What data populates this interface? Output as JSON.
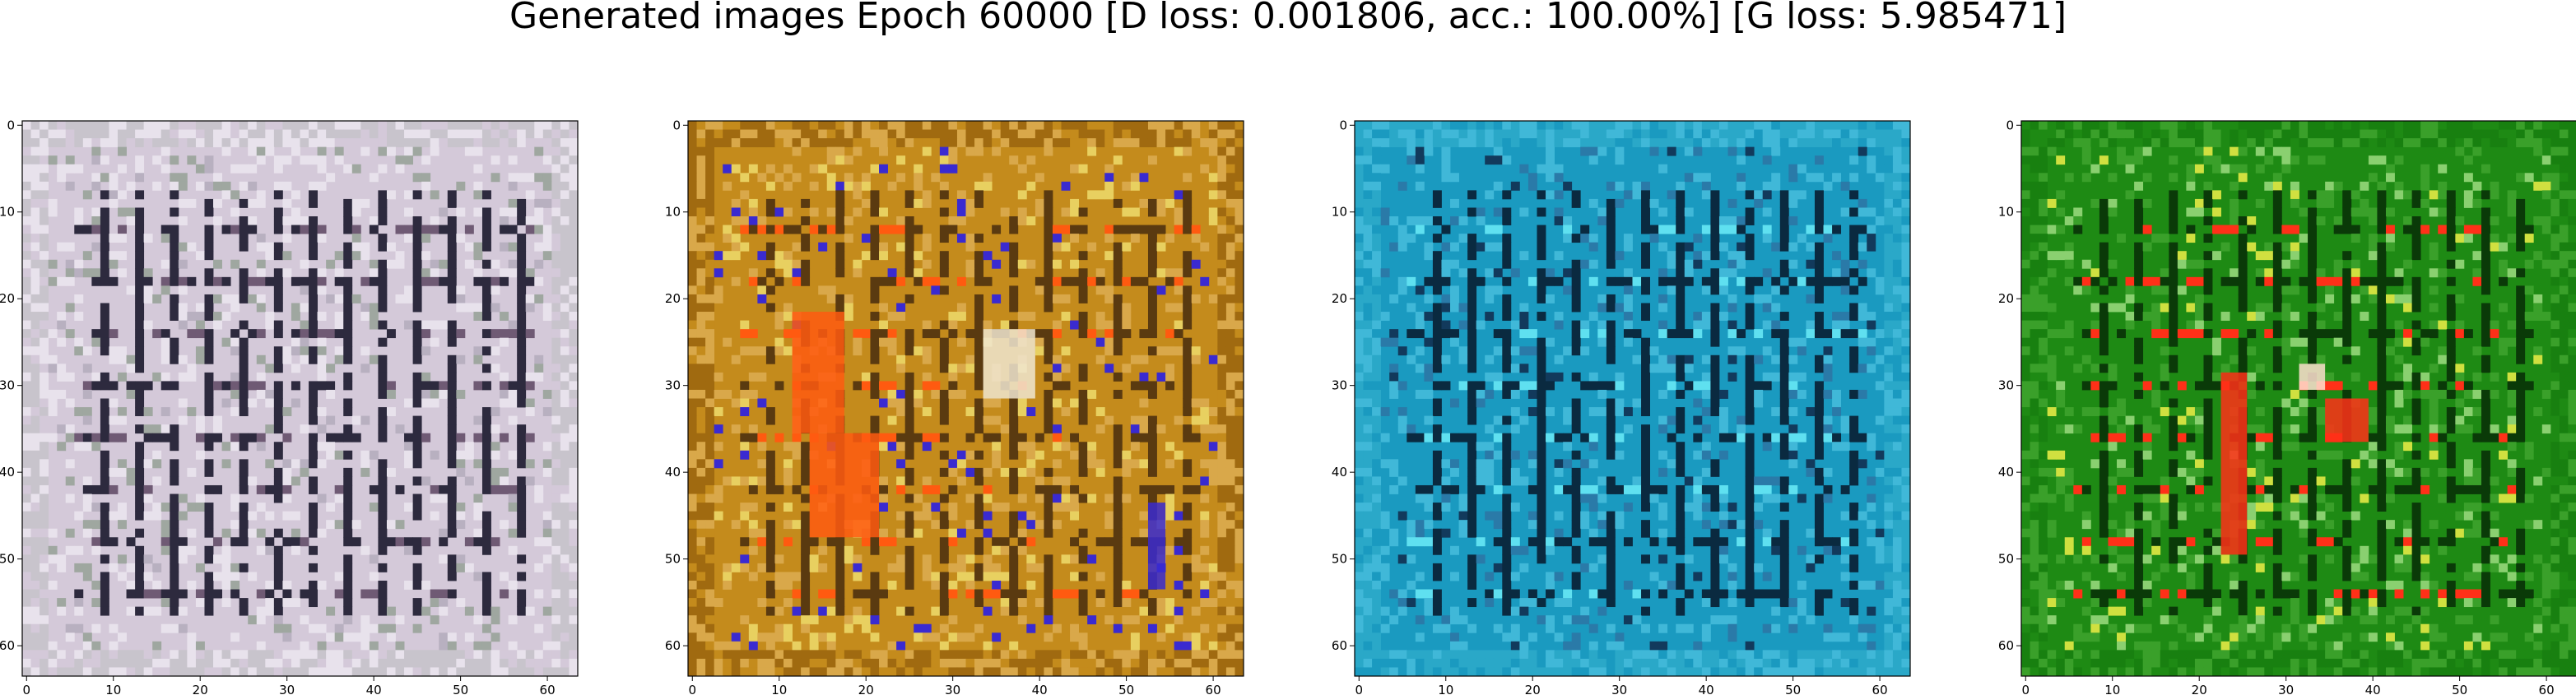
{
  "figure": {
    "title": "Generated images Epoch 60000 [D loss: 0.001806, acc.: 100.00%] [G loss: 5.985471]"
  },
  "axes": {
    "x_ticks": [
      "0",
      "10",
      "20",
      "30",
      "40",
      "50",
      "60"
    ],
    "y_ticks": [
      "0",
      "10",
      "20",
      "30",
      "40",
      "50",
      "60"
    ],
    "image_size": 64
  },
  "panels": [
    {
      "name": "panel-1",
      "palette": {
        "base": "#d4c9d9",
        "alt": "#e8e2ec",
        "stripe": "#2d2a3e",
        "accent1": "#6f5a74",
        "accent2": "#9fa7a0",
        "accent3": "#b8b0c0",
        "border": "#c8c4cc"
      }
    },
    {
      "name": "panel-2",
      "palette": {
        "base": "#c48b1c",
        "alt": "#d9a84a",
        "stripe": "#5a3a10",
        "accent1": "#ff5a10",
        "accent2": "#e8d060",
        "accent3": "#3a2ad0",
        "border": "#a06a10"
      }
    },
    {
      "name": "panel-3",
      "palette": {
        "base": "#1a9ac0",
        "alt": "#40b8d8",
        "stripe": "#0a2a40",
        "accent1": "#5fe0f0",
        "accent2": "#2a7aa8",
        "accent3": "#123a5c",
        "border": "#2aa8c8"
      }
    },
    {
      "name": "panel-4",
      "palette": {
        "base": "#1e8a14",
        "alt": "#3aa02a",
        "stripe": "#0a3a08",
        "accent1": "#ff3018",
        "accent2": "#8ad070",
        "accent3": "#d0e040",
        "border": "#188010"
      }
    }
  ]
}
